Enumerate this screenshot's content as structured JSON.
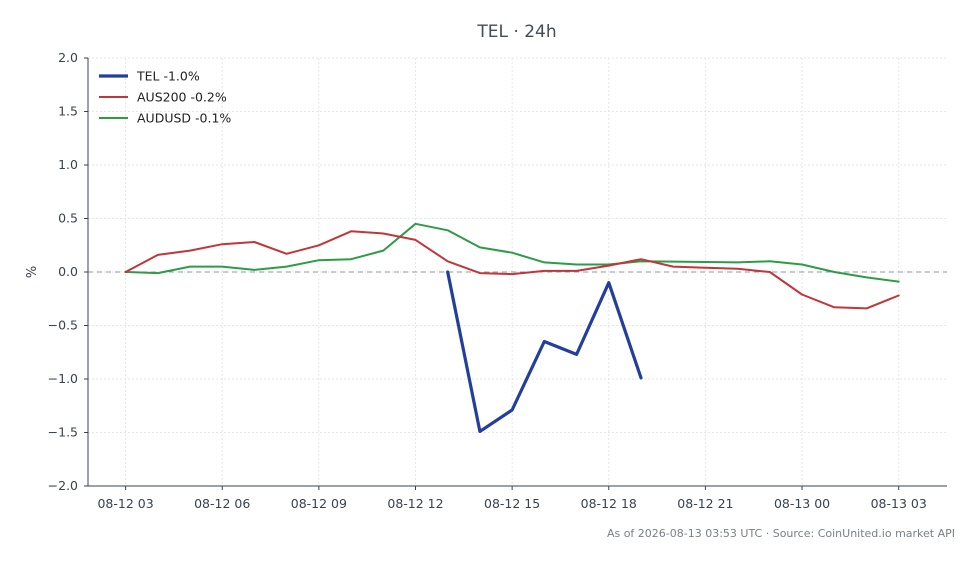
{
  "chart_data": {
    "type": "line",
    "title": "TEL · 24h",
    "ylabel": "%",
    "xlabel": "",
    "ylim": [
      -2.0,
      2.0
    ],
    "yticks": [
      2.0,
      1.5,
      1.0,
      0.5,
      0.0,
      -0.5,
      -1.0,
      -1.5,
      -2.0
    ],
    "ytick_labels": [
      "2.0",
      "1.5",
      "1.0",
      "0.5",
      "0.0",
      "−0.5",
      "−1.0",
      "−1.5",
      "−2.0"
    ],
    "xlim": [
      "08-12 01:50",
      "08-13 04:30"
    ],
    "xticks": [
      "08-12 03",
      "08-12 06",
      "08-12 09",
      "08-12 12",
      "08-12 15",
      "08-12 18",
      "08-12 21",
      "08-13 00",
      "08-13 03"
    ],
    "grid": true,
    "zero_line": true,
    "legend_position": "top-left",
    "series": [
      {
        "name": "TEL -1.0%",
        "color": "#233f9c",
        "x": [
          "08-12 13:00",
          "08-12 14:00",
          "08-12 15:00",
          "08-12 16:00",
          "08-12 17:00",
          "08-12 18:00",
          "08-12 19:00"
        ],
        "values": [
          0.0,
          -1.49,
          -1.29,
          -0.65,
          -0.77,
          -0.1,
          -0.99
        ]
      },
      {
        "name": "AUS200 -0.2%",
        "color": "#c0363a",
        "x": [
          "08-12 03:00",
          "08-12 04:00",
          "08-12 05:00",
          "08-12 06:00",
          "08-12 07:00",
          "08-12 08:00",
          "08-12 09:00",
          "08-12 10:00",
          "08-12 11:00",
          "08-12 12:00",
          "08-12 13:00",
          "08-12 14:00",
          "08-12 15:00",
          "08-12 16:00",
          "08-12 17:00",
          "08-12 18:00",
          "08-12 19:00",
          "08-12 20:00",
          "08-12 21:00",
          "08-12 22:00",
          "08-12 23:00",
          "08-13 00:00",
          "08-13 01:00",
          "08-13 02:00",
          "08-13 03:00"
        ],
        "values": [
          0.0,
          0.16,
          0.2,
          0.26,
          0.28,
          0.17,
          0.25,
          0.38,
          0.36,
          0.3,
          0.1,
          -0.01,
          -0.02,
          0.01,
          0.01,
          0.06,
          0.12,
          0.05,
          0.04,
          0.03,
          0.0,
          -0.21,
          -0.33,
          -0.34,
          -0.22
        ]
      },
      {
        "name": "AUDUSD -0.1%",
        "color": "#2e9b46",
        "x": [
          "08-12 03:00",
          "08-12 04:00",
          "08-12 05:00",
          "08-12 06:00",
          "08-12 07:00",
          "08-12 08:00",
          "08-12 09:00",
          "08-12 10:00",
          "08-12 11:00",
          "08-12 12:00",
          "08-12 13:00",
          "08-12 14:00",
          "08-12 15:00",
          "08-12 16:00",
          "08-12 17:00",
          "08-12 18:00",
          "08-12 19:00",
          "08-12 22:00",
          "08-12 23:00",
          "08-13 00:00",
          "08-13 01:00",
          "08-13 02:00",
          "08-13 03:00"
        ],
        "values": [
          0.0,
          -0.01,
          0.05,
          0.05,
          0.02,
          0.05,
          0.11,
          0.12,
          0.2,
          0.45,
          0.39,
          0.23,
          0.18,
          0.09,
          0.07,
          0.07,
          0.1,
          0.09,
          0.1,
          0.07,
          0.0,
          -0.05,
          -0.09
        ]
      }
    ]
  },
  "footer": "As of 2026-08-13 03:53 UTC · Source: CoinUnited.io market API"
}
